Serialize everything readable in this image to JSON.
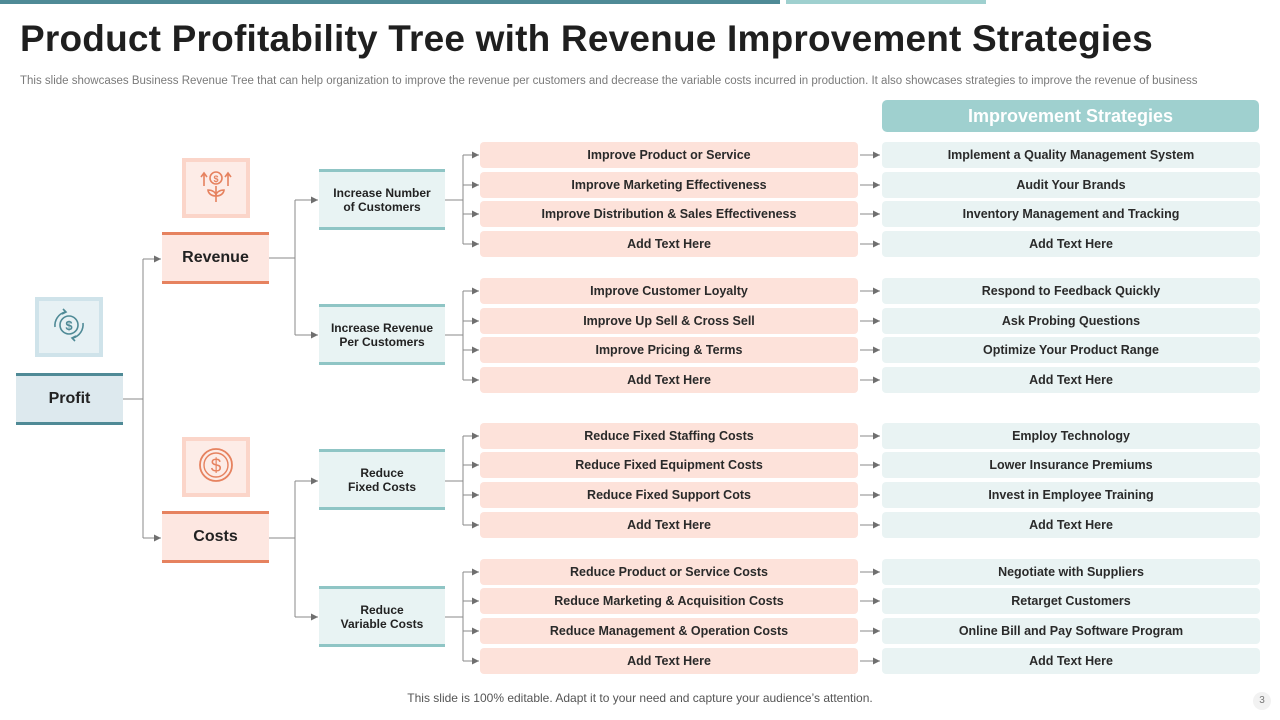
{
  "title": "Product Profitability Tree with Revenue Improvement Strategies",
  "subtitle": "This slide showcases Business Revenue Tree that can help organization to improve the revenue per customers and decrease the variable costs incurred in production. It also showcases strategies to improve the revenue of business",
  "root": {
    "label": "Profit",
    "icon": "dollar-exchange-icon"
  },
  "strategies_header": "Improvement Strategies",
  "categories": [
    {
      "label": "Revenue",
      "icon": "money-growth-plant-icon",
      "subs": [
        {
          "label": "Increase Number\nof Customers",
          "items": [
            "Improve Product or Service",
            "Improve Marketing Effectiveness",
            "Improve Distribution  & Sales Effectiveness",
            "Add Text Here"
          ],
          "strategies": [
            "Implement a Quality Management System",
            "Audit Your Brands",
            "Inventory Management and Tracking",
            "Add Text Here"
          ]
        },
        {
          "label": "Increase Revenue\nPer Customers",
          "items": [
            "Improve Customer Loyalty",
            "Improve Up Sell & Cross Sell",
            "Improve Pricing & Terms",
            "Add Text Here"
          ],
          "strategies": [
            "Respond  to Feedback Quickly",
            "Ask Probing Questions",
            "Optimize Your Product Range",
            "Add Text Here"
          ]
        }
      ]
    },
    {
      "label": "Costs",
      "icon": "dollar-coin-icon",
      "subs": [
        {
          "label": "Reduce\nFixed Costs",
          "items": [
            "Reduce Fixed Staffing Costs",
            "Reduce Fixed Equipment  Costs",
            "Reduce Fixed  Support Cots",
            "Add Text Here"
          ],
          "strategies": [
            "Employ  Technology",
            "Lower Insurance Premiums",
            "Invest in Employee Training",
            "Add Text Here"
          ]
        },
        {
          "label": "Reduce\nVariable Costs",
          "items": [
            "Reduce Product or Service Costs",
            "Reduce Marketing & Acquisition Costs",
            "Reduce Management & Operation Costs",
            "Add Text Here"
          ],
          "strategies": [
            "Negotiate with Suppliers",
            "Retarget Customers",
            "Online Bill and Pay Software Program",
            "Add Text Here"
          ]
        }
      ]
    }
  ],
  "footer": "This slide is 100% editable. Adapt it to your need and capture your audience’s attention.",
  "page_number": "3",
  "colors": {
    "accent_teal": "#4f8a96",
    "light_teal": "#9fd0cf",
    "accent_orange": "#e6825f",
    "leaf_pink": "#fde2da",
    "strategy_blue": "#e9f3f3"
  }
}
